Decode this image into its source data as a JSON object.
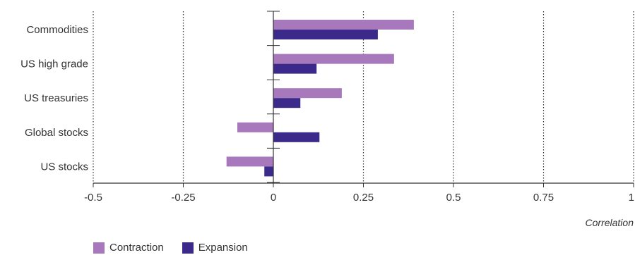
{
  "chart_data": {
    "type": "bar",
    "orientation": "horizontal",
    "categories": [
      "Commodities",
      "US high grade",
      "US treasuries",
      "Global stocks",
      "US stocks"
    ],
    "series": [
      {
        "name": "Contraction",
        "color": "#a878bd",
        "values": [
          0.39,
          0.335,
          0.19,
          -0.1,
          -0.13
        ]
      },
      {
        "name": "Expansion",
        "color": "#3b2a8a",
        "values": [
          0.29,
          0.12,
          0.075,
          0.128,
          -0.025
        ]
      }
    ],
    "xlim": [
      -0.5,
      1
    ],
    "xticks": [
      "-0.5",
      "-0.25",
      "0",
      "0.25",
      "0.5",
      "0.75",
      "1"
    ],
    "xtick_values": [
      -0.5,
      -0.25,
      0,
      0.25,
      0.5,
      0.75,
      1
    ],
    "xlabel": "Correlation",
    "grid": "vertical dotted",
    "legend_position": "bottom-left"
  }
}
